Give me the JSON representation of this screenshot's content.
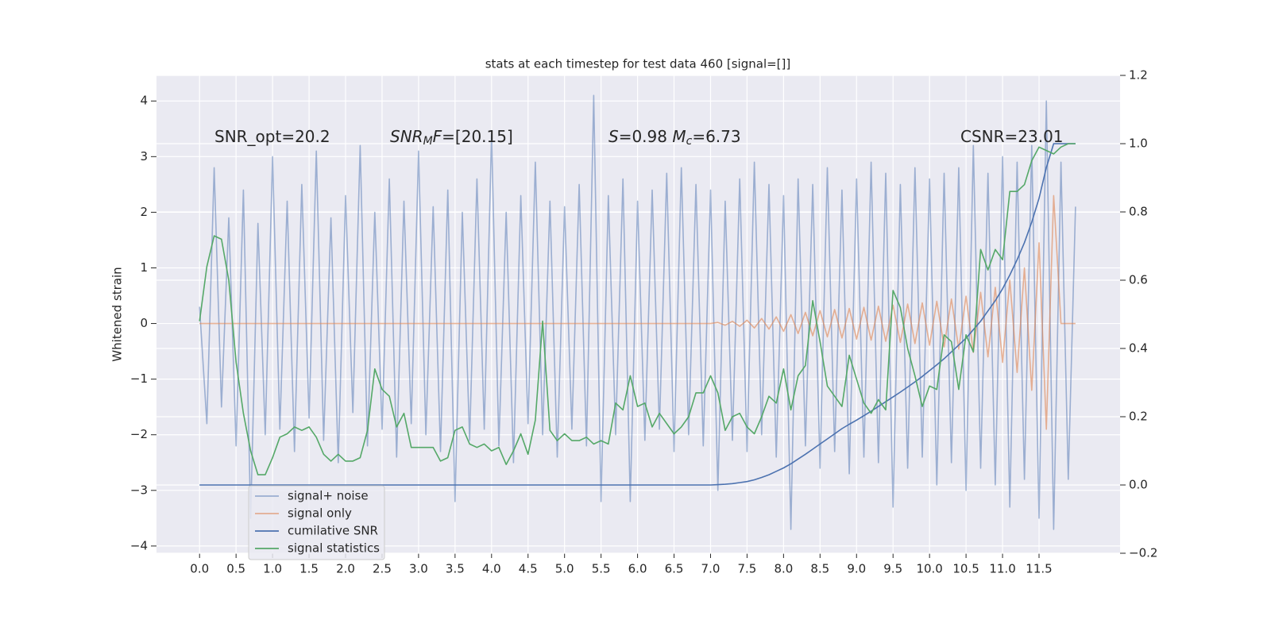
{
  "chart_data": {
    "type": "line",
    "title": "stats at each timestep for test data 460 [signal=[]]",
    "ylabel": "Whitened strain",
    "grid": true,
    "legend": "lower left",
    "background": "#eaeaf2",
    "xlim": [
      -0.59,
      12.61
    ],
    "ylim": [
      -4.13,
      4.46
    ],
    "y2lim": [
      -0.2,
      1.2
    ],
    "xticks": [
      {
        "value": 0,
        "label": "0.0"
      },
      {
        "value": 0.5,
        "label": "0.5"
      },
      {
        "value": 1,
        "label": "1.0"
      },
      {
        "value": 1.5,
        "label": "1.5"
      },
      {
        "value": 2,
        "label": "2.0"
      },
      {
        "value": 2.5,
        "label": "2.5"
      },
      {
        "value": 3,
        "label": "3.0"
      },
      {
        "value": 3.5,
        "label": "3.5"
      },
      {
        "value": 4,
        "label": "4.0"
      },
      {
        "value": 4.5,
        "label": "4.5"
      },
      {
        "value": 5,
        "label": "5.0"
      },
      {
        "value": 5.5,
        "label": "5.5"
      },
      {
        "value": 6,
        "label": "6.0"
      },
      {
        "value": 6.5,
        "label": "6.5"
      },
      {
        "value": 7,
        "label": "7.0"
      },
      {
        "value": 7.5,
        "label": "7.5"
      },
      {
        "value": 8,
        "label": "8.0"
      },
      {
        "value": 8.5,
        "label": "8.5"
      },
      {
        "value": 9,
        "label": "9.0"
      },
      {
        "value": 9.5,
        "label": "9.5"
      },
      {
        "value": 10,
        "label": "10.0"
      },
      {
        "value": 10.5,
        "label": "10.5"
      },
      {
        "value": 11,
        "label": "11.0"
      },
      {
        "value": 11.5,
        "label": "11.5"
      }
    ],
    "yticks": [
      {
        "value": -4,
        "label": "−4"
      },
      {
        "value": -3,
        "label": "−3"
      },
      {
        "value": -2,
        "label": "−2"
      },
      {
        "value": -1,
        "label": "−1"
      },
      0,
      1,
      2,
      3,
      4
    ],
    "y2ticks": [
      {
        "value": -0.2,
        "label": "−0.2"
      },
      {
        "value": 0,
        "label": "0.0"
      },
      0.2,
      0.4,
      0.6,
      0.8,
      {
        "value": 1,
        "label": "1.0"
      },
      1.2
    ],
    "annotations": [
      {
        "parts": [
          {
            "text": "SNR_opt=20.2"
          }
        ]
      },
      {
        "parts": [
          {
            "text": "SNR",
            "italic": true
          },
          {
            "text": "M",
            "italic": true,
            "sub": true
          },
          {
            "text": "F",
            "italic": true
          },
          {
            "text": "=[20.15]"
          }
        ]
      },
      {
        "parts": [
          {
            "text": "S",
            "italic": true
          },
          {
            "text": "=0.98   "
          },
          {
            "text": "M",
            "italic": true
          },
          {
            "text": "c",
            "italic": true,
            "sub": true
          },
          {
            "text": "=6.73"
          }
        ]
      },
      {
        "parts": [
          {
            "text": "CSNR=23.01"
          }
        ]
      }
    ],
    "x": [
      0,
      0.1,
      0.2,
      0.3,
      0.4,
      0.5,
      0.6,
      0.7,
      0.8,
      0.9,
      1,
      1.1,
      1.2,
      1.3,
      1.4,
      1.5,
      1.6,
      1.7,
      1.8,
      1.9,
      2,
      2.1,
      2.2,
      2.3,
      2.4,
      2.5,
      2.6,
      2.7,
      2.8,
      2.9,
      3,
      3.1,
      3.2,
      3.3,
      3.4,
      3.5,
      3.6,
      3.7,
      3.8,
      3.9,
      4,
      4.1,
      4.2,
      4.3,
      4.4,
      4.5,
      4.6,
      4.7,
      4.8,
      4.9,
      5,
      5.1,
      5.2,
      5.3,
      5.4,
      5.5,
      5.6,
      5.7,
      5.8,
      5.9,
      6,
      6.1,
      6.2,
      6.3,
      6.4,
      6.5,
      6.6,
      6.7,
      6.8,
      6.9,
      7,
      7.1,
      7.2,
      7.3,
      7.4,
      7.5,
      7.6,
      7.7,
      7.8,
      7.9,
      8,
      8.1,
      8.2,
      8.3,
      8.4,
      8.5,
      8.6,
      8.7,
      8.8,
      8.9,
      9,
      9.1,
      9.2,
      9.3,
      9.4,
      9.5,
      9.6,
      9.7,
      9.8,
      9.9,
      10,
      10.1,
      10.2,
      10.3,
      10.4,
      10.5,
      10.6,
      10.7,
      10.8,
      10.9,
      11,
      11.1,
      11.2,
      11.3,
      11.4,
      11.5,
      11.6,
      11.7,
      11.8,
      11.9,
      12
    ],
    "series": [
      {
        "name": "signal+ noise",
        "color": "#4c72b0",
        "opacity": 0.5,
        "values": [
          0.3,
          -1.8,
          2.8,
          -1.5,
          1.9,
          -2.2,
          2.4,
          -3.5,
          1.8,
          -2.0,
          3.0,
          -1.9,
          2.2,
          -2.3,
          2.5,
          -1.7,
          3.1,
          -2.1,
          1.9,
          -2.5,
          2.3,
          -1.6,
          3.2,
          -2.2,
          2.0,
          -1.9,
          2.6,
          -2.4,
          2.2,
          -1.8,
          3.1,
          -2.0,
          2.1,
          -2.3,
          2.4,
          -3.2,
          2.0,
          -2.1,
          2.6,
          -1.9,
          3.4,
          -2.2,
          2.0,
          -2.5,
          2.3,
          -1.8,
          2.9,
          -2.0,
          2.2,
          -2.4,
          2.1,
          -1.9,
          2.5,
          -2.2,
          4.1,
          -3.2,
          2.3,
          -2.0,
          2.6,
          -3.2,
          2.2,
          -2.1,
          2.4,
          -1.9,
          2.7,
          -2.3,
          2.8,
          -2.0,
          2.5,
          -2.2,
          2.4,
          -3.0,
          2.2,
          -2.1,
          2.6,
          -2.3,
          2.9,
          -2.0,
          2.5,
          -2.4,
          2.3,
          -3.7,
          2.6,
          -2.2,
          2.5,
          -2.6,
          2.8,
          -2.3,
          2.4,
          -2.7,
          2.6,
          -2.4,
          2.9,
          -2.5,
          2.7,
          -3.3,
          2.5,
          -2.6,
          2.8,
          -2.4,
          2.6,
          -2.9,
          2.7,
          -2.5,
          2.8,
          -3.0,
          3.2,
          -2.6,
          2.7,
          -2.9,
          3.0,
          -3.3,
          2.9,
          -2.8,
          3.2,
          -3.5,
          4.0,
          -3.7,
          2.9,
          -2.8,
          2.1
        ]
      },
      {
        "name": "signal only",
        "color": "#dd8452",
        "opacity": 0.6,
        "values": [
          0,
          0,
          0,
          0,
          0,
          0,
          0,
          0,
          0,
          0,
          0,
          0,
          0,
          0,
          0,
          0,
          0,
          0,
          0,
          0,
          0,
          0,
          0,
          0,
          0,
          0,
          0,
          0,
          0,
          0,
          0,
          0,
          0,
          0,
          0,
          0,
          0,
          0,
          0,
          0,
          0,
          0,
          0,
          0,
          0,
          0,
          0,
          0,
          0,
          0,
          0,
          0,
          0,
          0,
          0,
          0,
          0,
          0,
          0,
          0,
          0,
          0,
          0,
          0,
          0,
          0,
          0,
          0,
          0,
          0,
          0,
          0.02,
          -0.03,
          0.04,
          -0.05,
          0.06,
          -0.08,
          0.09,
          -0.1,
          0.12,
          -0.14,
          0.16,
          -0.18,
          0.2,
          -0.22,
          0.23,
          -0.24,
          0.25,
          -0.26,
          0.27,
          -0.28,
          0.29,
          -0.3,
          0.31,
          -0.32,
          0.33,
          -0.34,
          0.35,
          -0.36,
          0.37,
          -0.39,
          0.4,
          -0.42,
          0.44,
          -0.46,
          0.49,
          -0.52,
          0.56,
          -0.6,
          0.65,
          -0.7,
          0.78,
          -0.88,
          1.0,
          -1.2,
          1.45,
          -1.9,
          2.3,
          0,
          0,
          0
        ]
      },
      {
        "name": "cumilative SNR",
        "color": "#4c72b0",
        "opacity": 1,
        "axis": "y2",
        "values": [
          0,
          0,
          0,
          0,
          0,
          0,
          0,
          0,
          0,
          0,
          0,
          0,
          0,
          0,
          0,
          0,
          0,
          0,
          0,
          0,
          0,
          0,
          0,
          0,
          0,
          0,
          0,
          0,
          0,
          0,
          0,
          0,
          0,
          0,
          0,
          0,
          0,
          0,
          0,
          0,
          0,
          0,
          0,
          0,
          0,
          0,
          0,
          0,
          0,
          0,
          0,
          0,
          0,
          0,
          0,
          0,
          0,
          0,
          0,
          0,
          0,
          0,
          0,
          0,
          0,
          0,
          0,
          0,
          0,
          0,
          0,
          0.001,
          0.002,
          0.004,
          0.007,
          0.01,
          0.015,
          0.022,
          0.03,
          0.04,
          0.05,
          0.062,
          0.076,
          0.09,
          0.105,
          0.12,
          0.135,
          0.15,
          0.165,
          0.178,
          0.19,
          0.203,
          0.216,
          0.23,
          0.244,
          0.258,
          0.272,
          0.287,
          0.302,
          0.318,
          0.335,
          0.352,
          0.37,
          0.39,
          0.41,
          0.43,
          0.455,
          0.48,
          0.51,
          0.54,
          0.575,
          0.615,
          0.66,
          0.71,
          0.77,
          0.84,
          0.93,
          1.0,
          1.0,
          1.0,
          1.0
        ]
      },
      {
        "name": "signal statistics",
        "color": "#55a868",
        "opacity": 1,
        "axis": "y2",
        "values": [
          0.48,
          0.64,
          0.73,
          0.72,
          0.6,
          0.36,
          0.21,
          0.1,
          0.03,
          0.03,
          0.08,
          0.14,
          0.15,
          0.17,
          0.16,
          0.17,
          0.14,
          0.09,
          0.07,
          0.09,
          0.07,
          0.07,
          0.08,
          0.16,
          0.34,
          0.28,
          0.26,
          0.17,
          0.21,
          0.11,
          0.11,
          0.11,
          0.11,
          0.07,
          0.08,
          0.16,
          0.17,
          0.12,
          0.11,
          0.12,
          0.1,
          0.11,
          0.06,
          0.1,
          0.15,
          0.09,
          0.19,
          0.48,
          0.16,
          0.13,
          0.15,
          0.13,
          0.13,
          0.14,
          0.12,
          0.13,
          0.12,
          0.24,
          0.22,
          0.32,
          0.23,
          0.24,
          0.17,
          0.21,
          0.18,
          0.15,
          0.17,
          0.2,
          0.27,
          0.27,
          0.32,
          0.27,
          0.16,
          0.2,
          0.21,
          0.17,
          0.15,
          0.2,
          0.26,
          0.24,
          0.34,
          0.22,
          0.32,
          0.35,
          0.54,
          0.42,
          0.29,
          0.26,
          0.23,
          0.38,
          0.31,
          0.24,
          0.21,
          0.25,
          0.22,
          0.57,
          0.52,
          0.4,
          0.32,
          0.23,
          0.29,
          0.28,
          0.44,
          0.42,
          0.28,
          0.44,
          0.39,
          0.69,
          0.63,
          0.69,
          0.66,
          0.86,
          0.86,
          0.88,
          0.95,
          0.99,
          0.98,
          0.97,
          0.99,
          1.0,
          1.0
        ]
      }
    ]
  }
}
